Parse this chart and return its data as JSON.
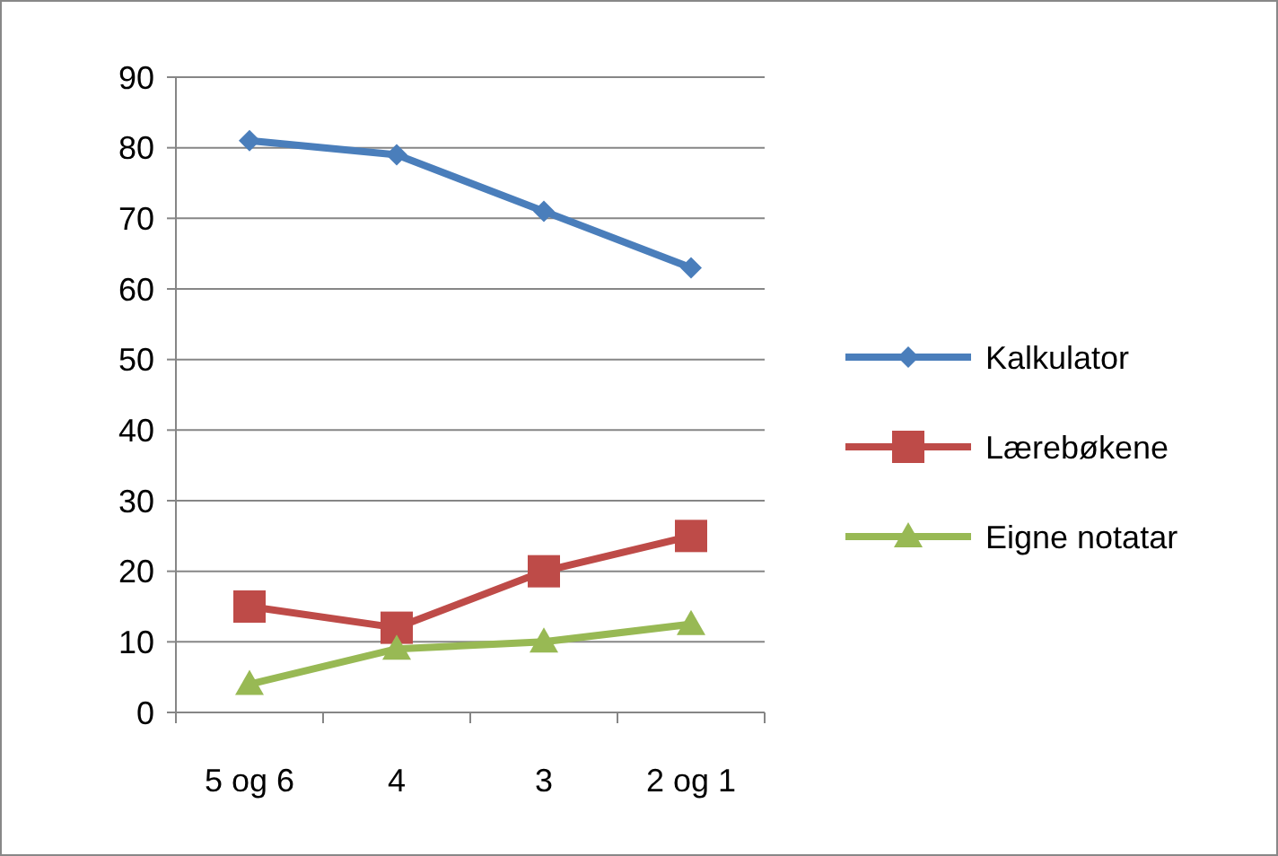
{
  "chart_data": {
    "type": "line",
    "categories": [
      "5 og 6",
      "4",
      "3",
      "2 og 1"
    ],
    "series": [
      {
        "name": "Kalkulator",
        "color": "#4a7ebb",
        "values": [
          81,
          79,
          71,
          63
        ],
        "marker": "diamond"
      },
      {
        "name": "Lærebøkene",
        "color": "#be4b48",
        "values": [
          15,
          12,
          20,
          25
        ],
        "marker": "square"
      },
      {
        "name": "Eigne notatar",
        "color": "#98b954",
        "values": [
          4,
          9,
          10,
          12.5
        ],
        "marker": "triangle"
      }
    ],
    "ylim": [
      0,
      90
    ],
    "yticks": [
      0,
      10,
      20,
      30,
      40,
      50,
      60,
      70,
      80,
      90
    ],
    "grid": "y",
    "legend": "right"
  }
}
